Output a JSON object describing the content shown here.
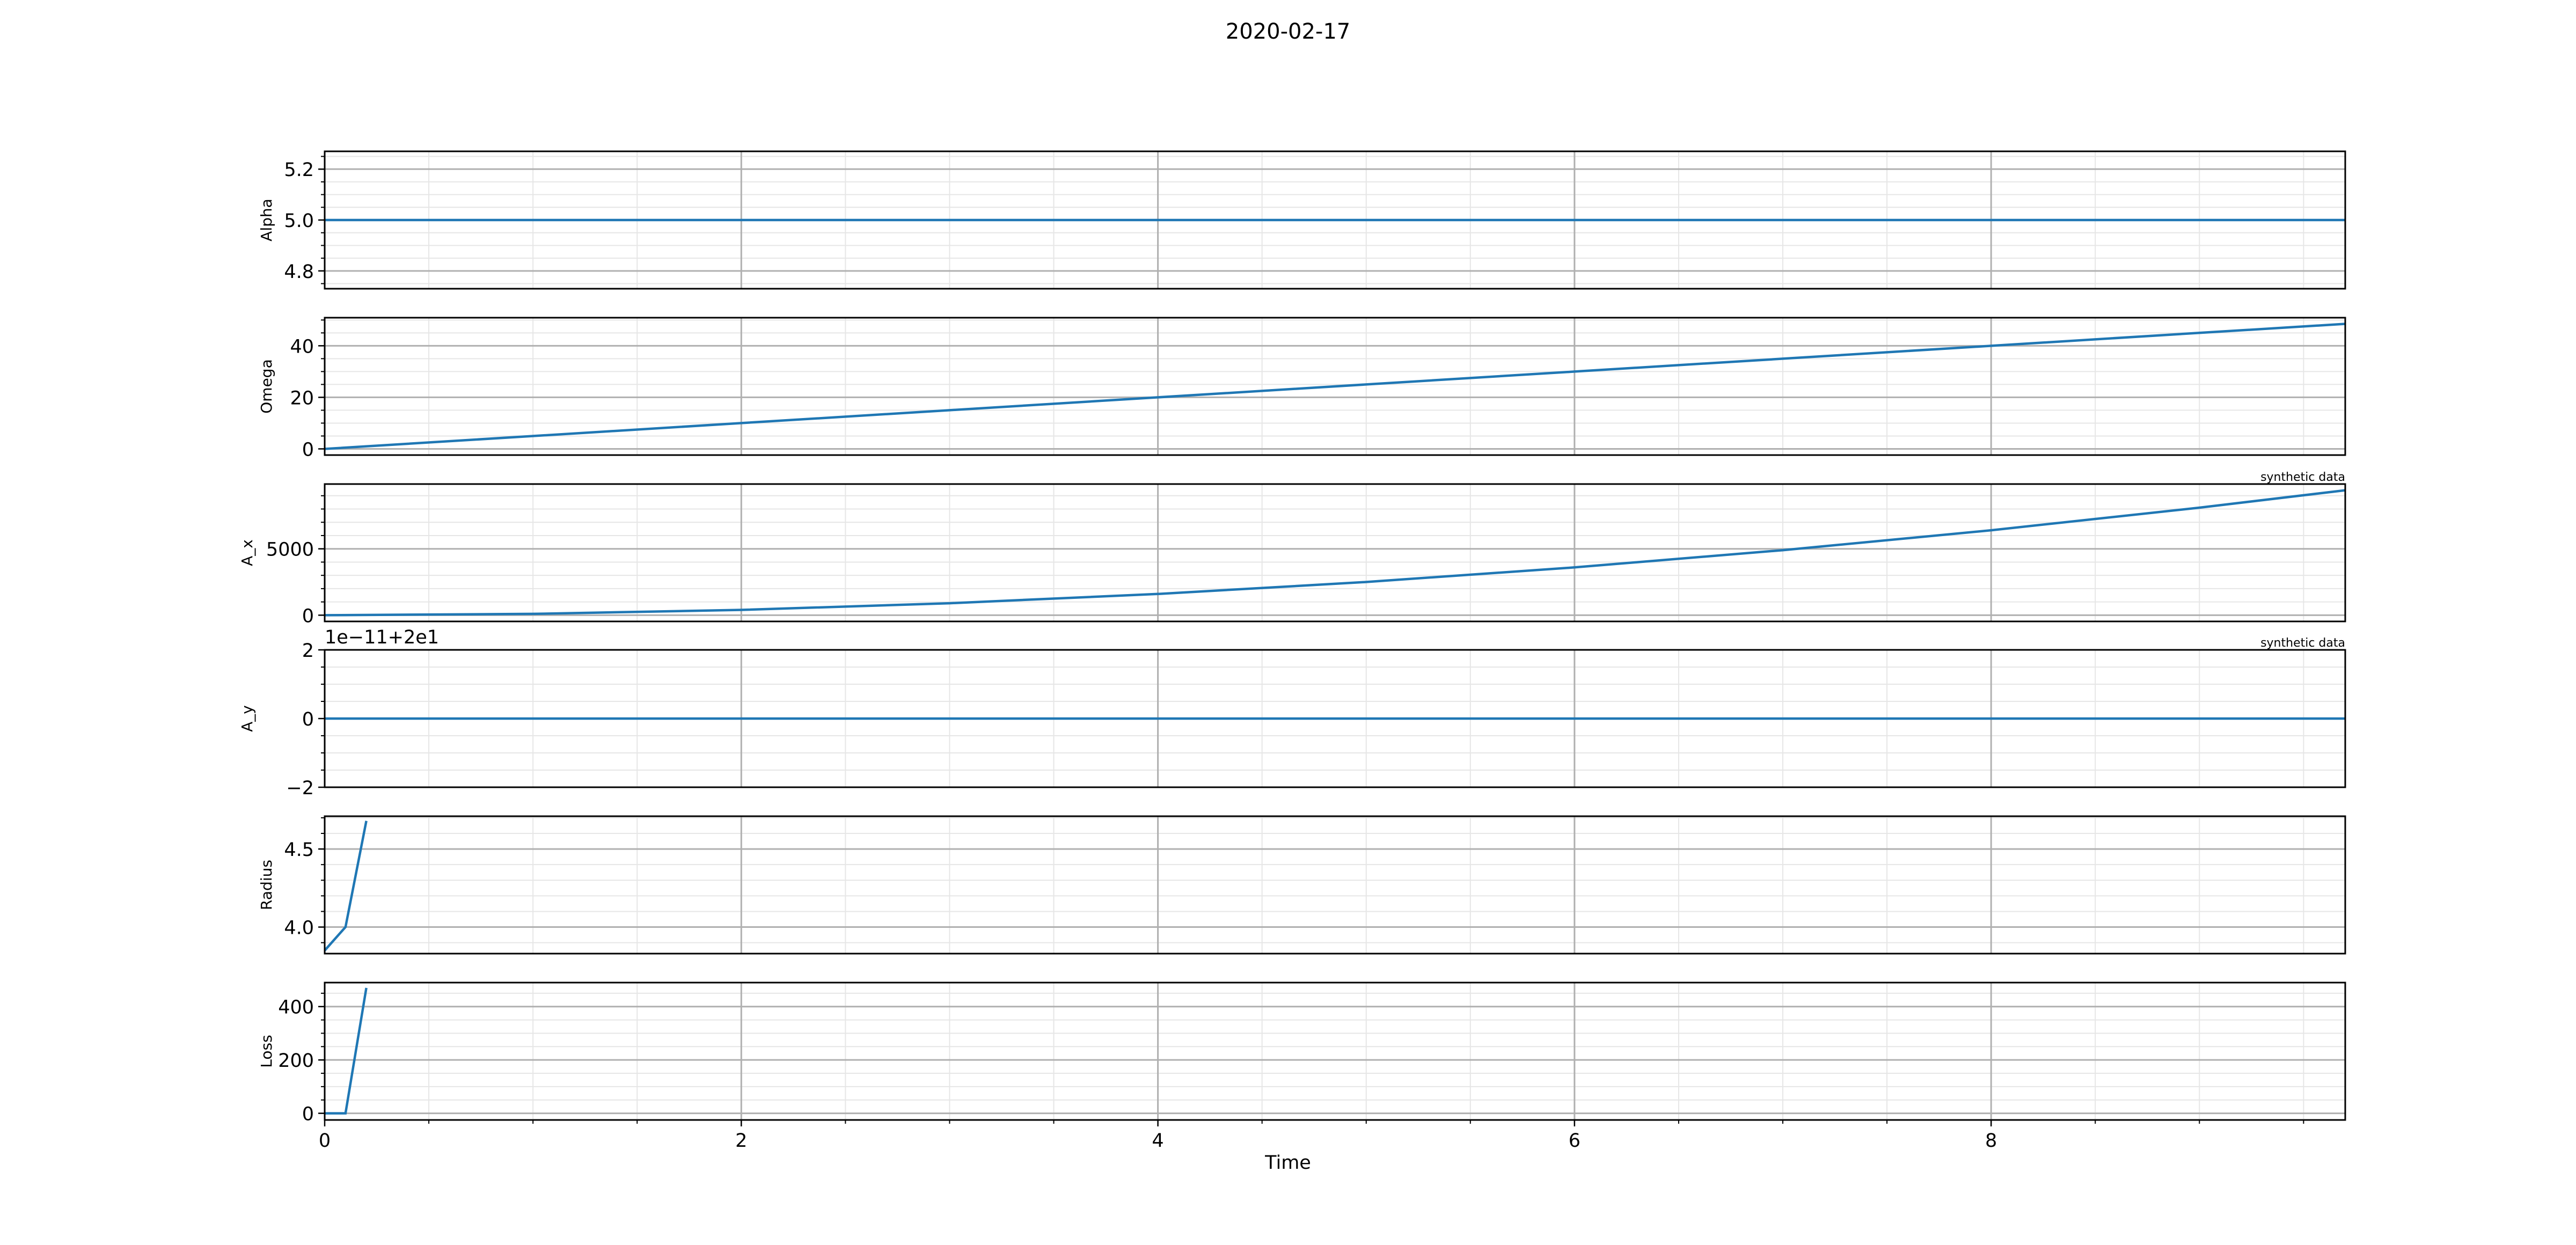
{
  "figure": {
    "title": "2020-02-17"
  },
  "colors": {
    "line": "#1f77b4",
    "major_grid": "#b0b0b0",
    "minor_grid": "#e6e6e6",
    "axes": "#000000"
  },
  "shared_x": {
    "label": "Time",
    "range": [
      0,
      9.7
    ],
    "major_ticks": [
      0,
      2,
      4,
      6,
      8
    ],
    "major_tick_labels": [
      "0",
      "2",
      "4",
      "6",
      "8"
    ],
    "minor_step": 0.5,
    "grid": true
  },
  "chart_data": [
    {
      "type": "line",
      "ylabel": "Alpha",
      "ylim": [
        4.73,
        5.27
      ],
      "yticks": [
        4.8,
        5.0,
        5.2
      ],
      "ytick_labels": [
        "4.8",
        "5.0",
        "5.2"
      ],
      "yminor_step": 0.05,
      "offset_text": "",
      "annotation": "",
      "series": [
        {
          "x": [
            0,
            9.7
          ],
          "y": [
            5.0,
            5.0
          ]
        }
      ]
    },
    {
      "type": "line",
      "ylabel": "Omega",
      "ylim": [
        -2.4,
        50.9
      ],
      "yticks": [
        0,
        20,
        40
      ],
      "ytick_labels": [
        "0",
        "20",
        "40"
      ],
      "yminor_step": 5,
      "offset_text": "",
      "annotation": "",
      "series": [
        {
          "x": [
            0,
            1,
            2,
            3,
            4,
            5,
            6,
            7,
            8,
            9,
            9.7
          ],
          "y": [
            0,
            5,
            10,
            15,
            20,
            25,
            30,
            35,
            40,
            45,
            48.5
          ]
        }
      ]
    },
    {
      "type": "line",
      "ylabel": "A_x",
      "ylim": [
        -470,
        9880
      ],
      "yticks": [
        0,
        5000
      ],
      "ytick_labels": [
        "0",
        "5000"
      ],
      "yminor_step": 1000,
      "offset_text": "",
      "annotation": "synthetic data",
      "series": [
        {
          "x": [
            0,
            1,
            2,
            3,
            4,
            5,
            6,
            7,
            8,
            9,
            9.7
          ],
          "y": [
            0,
            100,
            400,
            900,
            1600,
            2500,
            3600,
            4900,
            6400,
            8100,
            9409
          ]
        }
      ]
    },
    {
      "type": "line",
      "ylabel": "A_y",
      "ylim": [
        -2,
        2
      ],
      "yticks": [
        -2,
        0,
        2
      ],
      "ytick_labels": [
        "−2",
        "0",
        "2"
      ],
      "yminor_step": 0.5,
      "offset_text": "1e−11+2e1",
      "annotation": "synthetic data",
      "series": [
        {
          "x": [
            0,
            9.7
          ],
          "y": [
            0,
            0
          ]
        }
      ]
    },
    {
      "type": "line",
      "ylabel": "Radius",
      "ylim": [
        3.83,
        4.71
      ],
      "yticks": [
        4.0,
        4.5
      ],
      "ytick_labels": [
        "4.0",
        "4.5"
      ],
      "yminor_step": 0.1,
      "offset_text": "",
      "annotation": "",
      "series": [
        {
          "x": [
            0,
            0.1,
            0.2
          ],
          "y": [
            3.85,
            4.0,
            4.68
          ]
        }
      ]
    },
    {
      "type": "line",
      "ylabel": "Loss",
      "ylim": [
        -25,
        490
      ],
      "yticks": [
        0,
        200,
        400
      ],
      "ytick_labels": [
        "0",
        "200",
        "400"
      ],
      "yminor_step": 50,
      "offset_text": "",
      "annotation": "",
      "series": [
        {
          "x": [
            0,
            0.1,
            0.2
          ],
          "y": [
            0,
            0,
            470
          ]
        }
      ]
    }
  ]
}
